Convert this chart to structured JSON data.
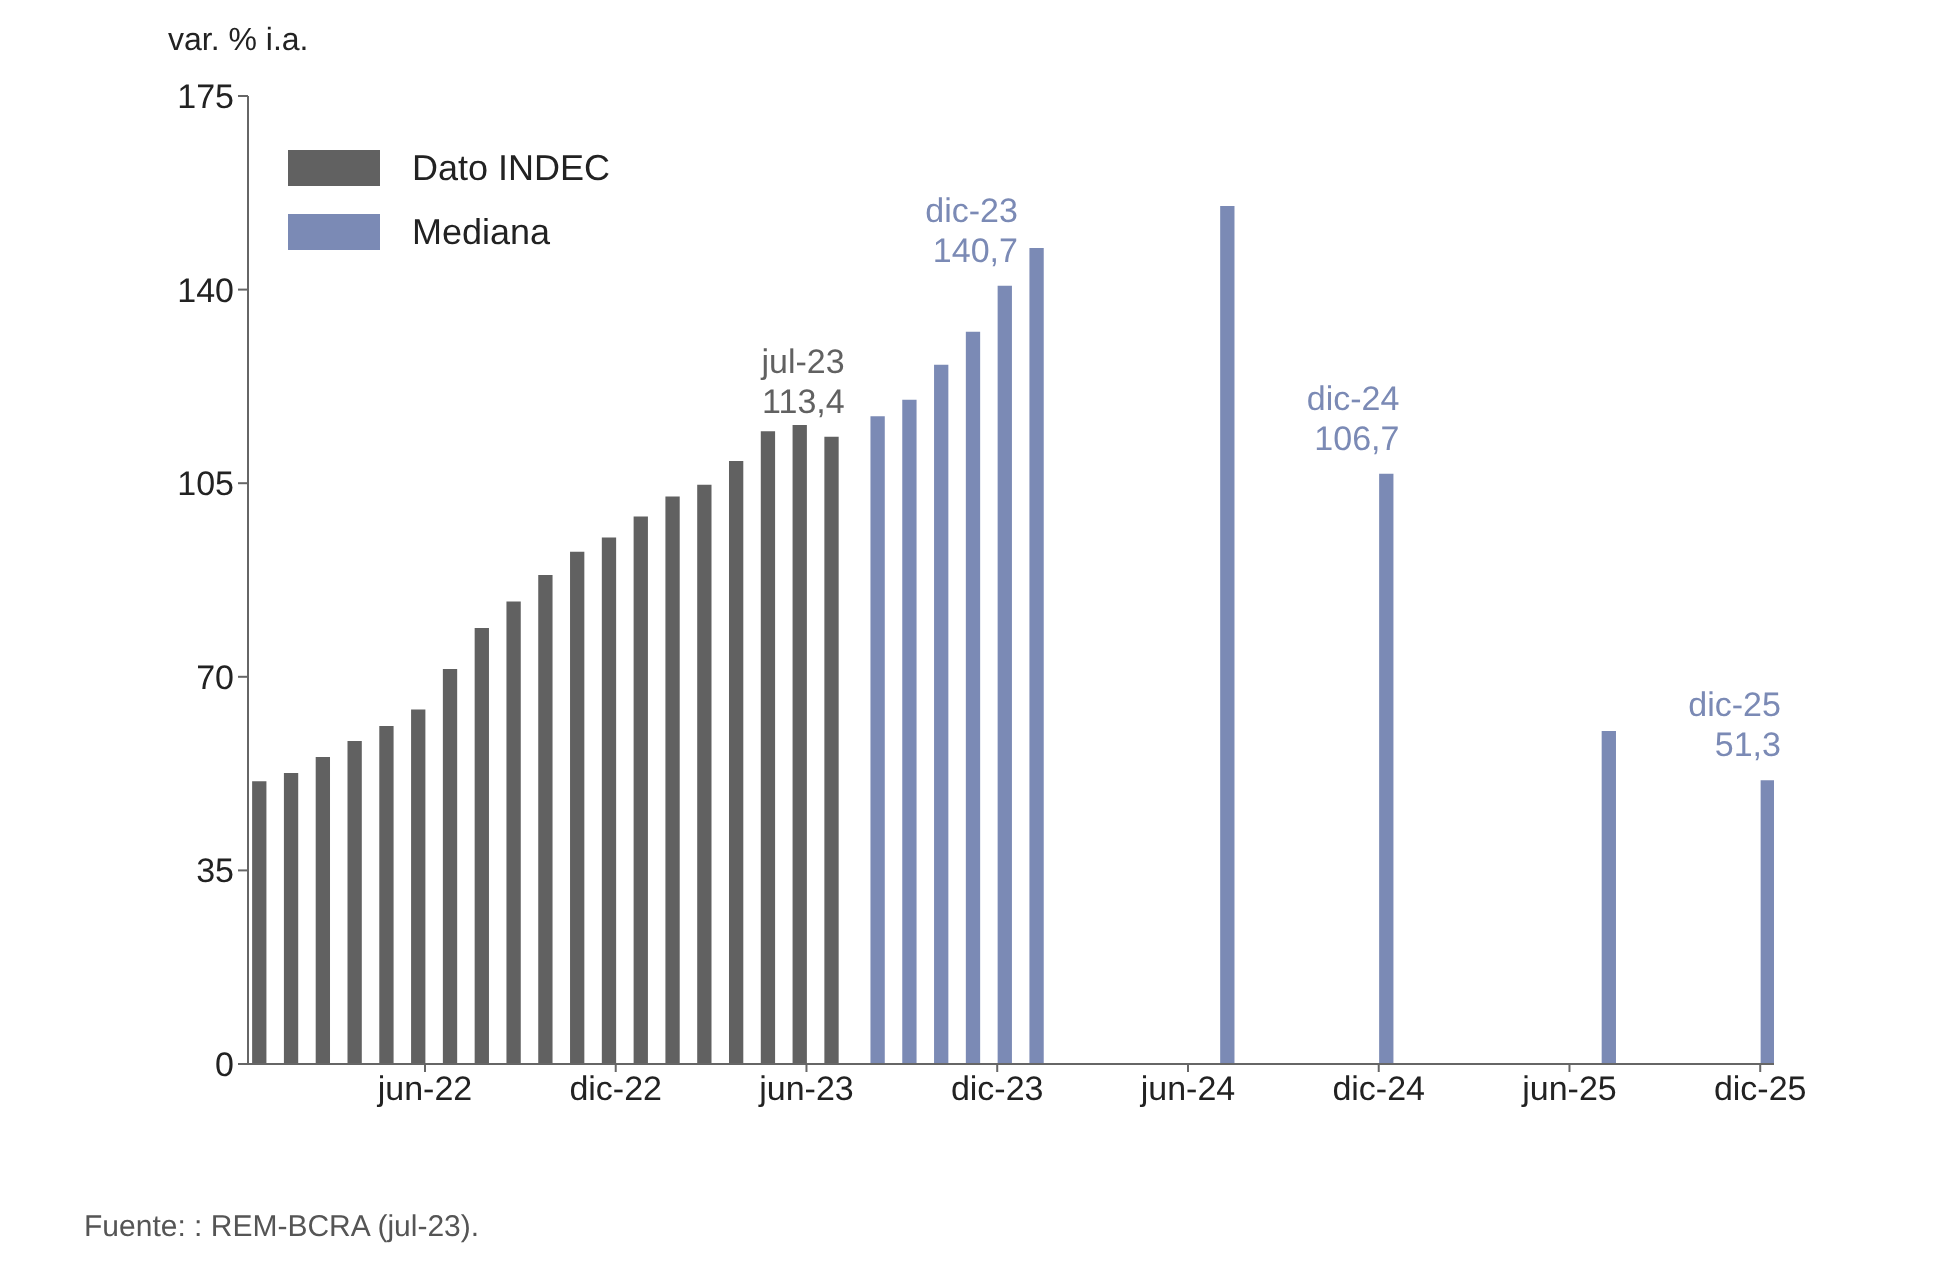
{
  "chart_data": {
    "type": "bar",
    "ylabel": "var. % i.a.",
    "x": [
      "2022-01",
      "2022-02",
      "2022-03",
      "2022-04",
      "2022-05",
      "2022-06",
      "2022-07",
      "2022-08",
      "2022-09",
      "2022-10",
      "2022-11",
      "2022-12",
      "2023-01",
      "2023-02",
      "2023-03",
      "2023-04",
      "2023-05",
      "2023-06",
      "2023-07",
      "2023-08",
      "2023-09",
      "2023-10",
      "2023-11",
      "2023-12",
      "2024-01",
      "2024-07",
      "2024-12",
      "2025-07",
      "2025-12"
    ],
    "series": [
      {
        "name": "Dato INDEC",
        "color": "#616161",
        "values": [
          51.1,
          52.6,
          55.5,
          58.4,
          61.1,
          64.1,
          71.4,
          78.8,
          83.6,
          88.4,
          92.6,
          95.2,
          99.0,
          102.6,
          104.7,
          109.0,
          114.4,
          115.5,
          113.4,
          null,
          null,
          null,
          null,
          null,
          null,
          null,
          null,
          null,
          null
        ],
        "value_labels": [
          null,
          null,
          null,
          null,
          null,
          null,
          null,
          null,
          null,
          null,
          null,
          null,
          null,
          null,
          null,
          null,
          null,
          null,
          "jul-23\n113,4",
          null,
          null,
          null,
          null,
          null,
          null,
          null,
          null,
          null,
          null
        ]
      },
      {
        "name": "Mediana",
        "color": "#7b8ab5",
        "values": [
          null,
          null,
          null,
          null,
          null,
          null,
          null,
          null,
          null,
          null,
          null,
          null,
          null,
          null,
          null,
          null,
          null,
          null,
          null,
          117.1,
          120.1,
          126.4,
          132.4,
          140.7,
          147.5,
          155.1,
          106.7,
          60.2,
          51.3
        ],
        "value_labels": [
          null,
          null,
          null,
          null,
          null,
          null,
          null,
          null,
          null,
          null,
          null,
          null,
          null,
          null,
          null,
          null,
          null,
          null,
          null,
          null,
          null,
          null,
          null,
          "dic-23\n140,7",
          null,
          null,
          "dic-24\n106,7",
          null,
          "dic-25\n51,3"
        ]
      }
    ],
    "xlim": [
      "2021-12-14",
      "2025-12-14"
    ],
    "xticks": [
      {
        "value": "2022-06",
        "label": "jun-22"
      },
      {
        "value": "2022-12",
        "label": "dic-22"
      },
      {
        "value": "2023-06",
        "label": "jun-23"
      },
      {
        "value": "2023-12",
        "label": "dic-23"
      },
      {
        "value": "2024-06",
        "label": "jun-24"
      },
      {
        "value": "2024-12",
        "label": "dic-24"
      },
      {
        "value": "2025-06",
        "label": "jun-25"
      },
      {
        "value": "2025-12",
        "label": "dic-25"
      }
    ],
    "ylim": [
      0,
      175
    ],
    "yticks": [
      0,
      35,
      70,
      105,
      140,
      175
    ],
    "grid": false,
    "legend": "top left",
    "annotations": [
      "Fuente: : REM-BCRA (jul-23)."
    ]
  }
}
